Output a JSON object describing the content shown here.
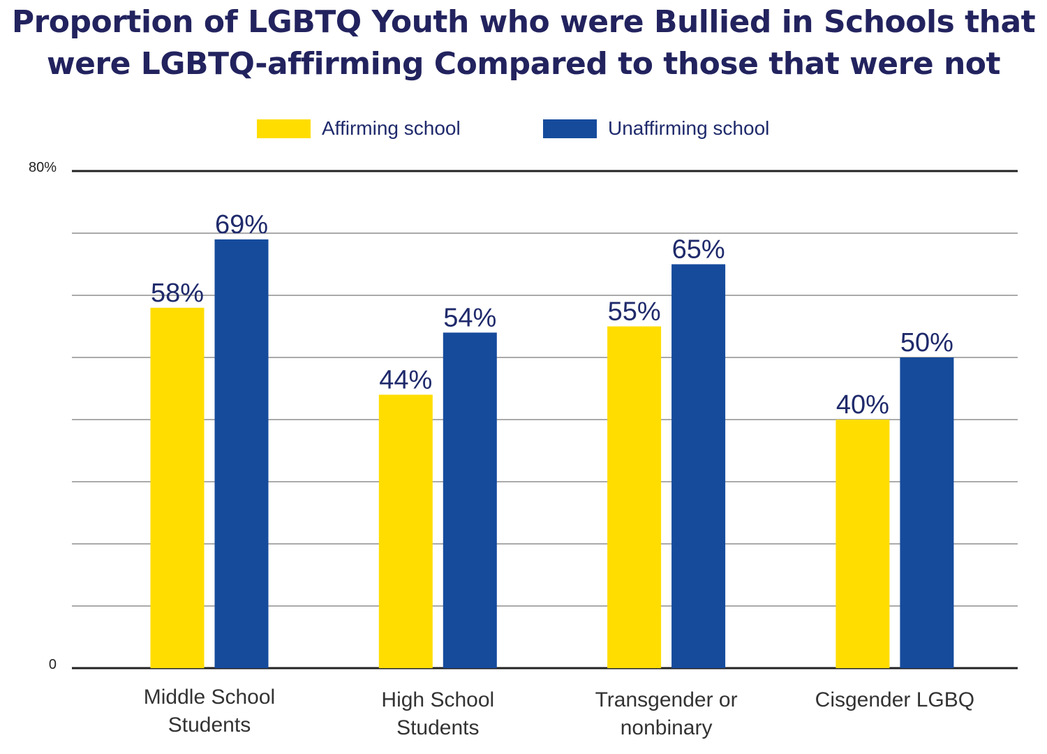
{
  "chart_data": {
    "type": "bar",
    "title": [
      "Proportion of LGBTQ Youth who were Bullied in Schools that",
      "were LGBTQ-affirming Compared to those that were not"
    ],
    "categories": [
      [
        "Middle School",
        "Students"
      ],
      [
        "High School",
        "Students"
      ],
      [
        "Transgender or",
        "nonbinary"
      ],
      [
        "Cisgender LGBQ"
      ]
    ],
    "series": [
      {
        "name": "Affirming school",
        "values": [
          58,
          44,
          55,
          40
        ],
        "labels": [
          "58%",
          "44%",
          "55%",
          "40%"
        ],
        "color": "#FFDD00"
      },
      {
        "name": "Unaffirming school",
        "values": [
          69,
          54,
          65,
          50
        ],
        "labels": [
          "69%",
          "54%",
          "65%",
          "50%"
        ],
        "color": "#164B9C"
      }
    ],
    "ylim": [
      0,
      80
    ],
    "ytick_labels": [
      "0",
      "80%"
    ],
    "grid_step": 10,
    "grid": true,
    "legend": "top-center",
    "label_color": "#1F2A6B"
  }
}
